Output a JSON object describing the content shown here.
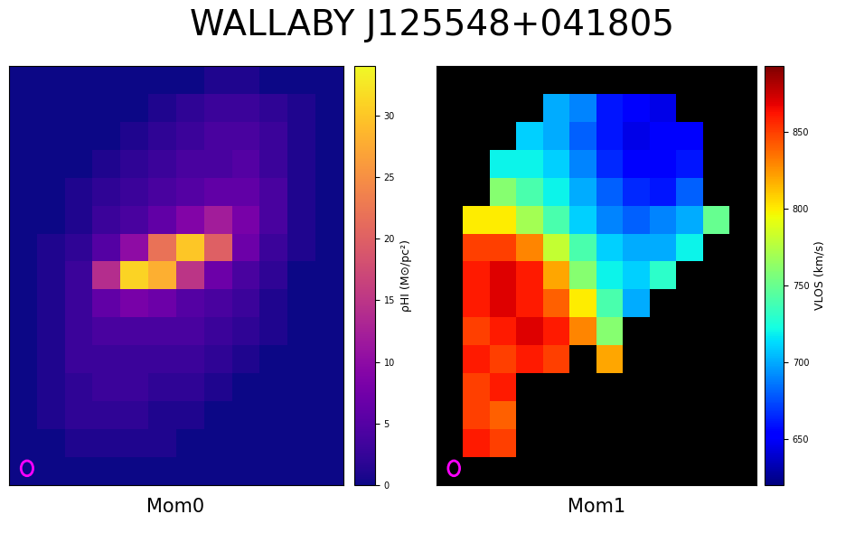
{
  "title": "WALLABY J125548+041805",
  "chart_data": [
    {
      "type": "heatmap",
      "xlabel": "Mom0",
      "color": "plasma",
      "tick_labels": false,
      "cells": [
        [
          0,
          0,
          0,
          0,
          0,
          0,
          0,
          1,
          1,
          0,
          0,
          0
        ],
        [
          0,
          0,
          0,
          0,
          0,
          1,
          2,
          3,
          3,
          2,
          1,
          0
        ],
        [
          0,
          0,
          0,
          0,
          1,
          2,
          3,
          4,
          4,
          3,
          1,
          0
        ],
        [
          0,
          0,
          0,
          1,
          2,
          3,
          4,
          4,
          5,
          3,
          1,
          0
        ],
        [
          0,
          0,
          1,
          2,
          3,
          4,
          5,
          6,
          6,
          4,
          1,
          0
        ],
        [
          0,
          0,
          1,
          3,
          4,
          6,
          9,
          12,
          8,
          4,
          1,
          0
        ],
        [
          0,
          1,
          2,
          5,
          10,
          22,
          30,
          20,
          7,
          3,
          1,
          0
        ],
        [
          0,
          1,
          3,
          14,
          31,
          28,
          15,
          7,
          4,
          2,
          0,
          0
        ],
        [
          0,
          1,
          3,
          6,
          8,
          7,
          5,
          4,
          3,
          1,
          0,
          0
        ],
        [
          0,
          1,
          3,
          4,
          4,
          4,
          4,
          3,
          2,
          1,
          0,
          0
        ],
        [
          0,
          1,
          3,
          3,
          3,
          3,
          3,
          2,
          1,
          0,
          0,
          0
        ],
        [
          0,
          1,
          2,
          3,
          3,
          2,
          2,
          1,
          0,
          0,
          0,
          0
        ],
        [
          0,
          1,
          2,
          2,
          2,
          1,
          1,
          0,
          0,
          0,
          0,
          0
        ],
        [
          0,
          0,
          1,
          1,
          1,
          1,
          0,
          0,
          0,
          0,
          0,
          0
        ],
        [
          0,
          0,
          0,
          0,
          0,
          0,
          0,
          0,
          0,
          0,
          0,
          0
        ]
      ],
      "colorbar": {
        "label": "ρHI (M⊙/pc²)",
        "range": [
          0,
          34
        ],
        "ticks": [
          0,
          5,
          10,
          15,
          20,
          25,
          30
        ]
      }
    },
    {
      "type": "heatmap",
      "xlabel": "Mom1",
      "color": "jet",
      "tick_labels": false,
      "cells": [
        [
          null,
          null,
          null,
          null,
          null,
          null,
          null,
          null,
          null,
          null,
          null,
          null
        ],
        [
          null,
          null,
          null,
          null,
          700,
          690,
          660,
          650,
          645,
          null,
          null,
          null
        ],
        [
          null,
          null,
          null,
          710,
          700,
          680,
          660,
          645,
          650,
          650,
          null,
          null
        ],
        [
          null,
          null,
          720,
          720,
          710,
          690,
          665,
          650,
          650,
          660,
          null,
          null
        ],
        [
          null,
          null,
          760,
          740,
          720,
          700,
          680,
          665,
          660,
          680,
          null,
          null
        ],
        [
          null,
          800,
          800,
          770,
          740,
          710,
          690,
          680,
          690,
          700,
          750,
          null
        ],
        [
          null,
          850,
          850,
          830,
          780,
          740,
          710,
          700,
          700,
          720,
          null,
          null
        ],
        [
          null,
          860,
          870,
          860,
          820,
          760,
          720,
          710,
          730,
          null,
          null,
          null
        ],
        [
          null,
          860,
          870,
          860,
          840,
          800,
          740,
          700,
          null,
          null,
          null,
          null
        ],
        [
          null,
          850,
          860,
          870,
          860,
          830,
          760,
          null,
          null,
          null,
          null,
          null
        ],
        [
          null,
          860,
          850,
          860,
          850,
          null,
          820,
          null,
          null,
          null,
          null,
          null
        ],
        [
          null,
          850,
          860,
          null,
          null,
          null,
          null,
          null,
          null,
          null,
          null,
          null
        ],
        [
          null,
          850,
          840,
          null,
          null,
          null,
          null,
          null,
          null,
          null,
          null,
          null
        ],
        [
          null,
          860,
          850,
          null,
          null,
          null,
          null,
          null,
          null,
          null,
          null,
          null
        ],
        [
          null,
          null,
          null,
          null,
          null,
          null,
          null,
          null,
          null,
          null,
          null,
          null
        ]
      ],
      "colorbar": {
        "label": "VLOS (km/s)",
        "range": [
          620,
          893
        ],
        "ticks": [
          650,
          700,
          750,
          800,
          850
        ]
      }
    }
  ]
}
